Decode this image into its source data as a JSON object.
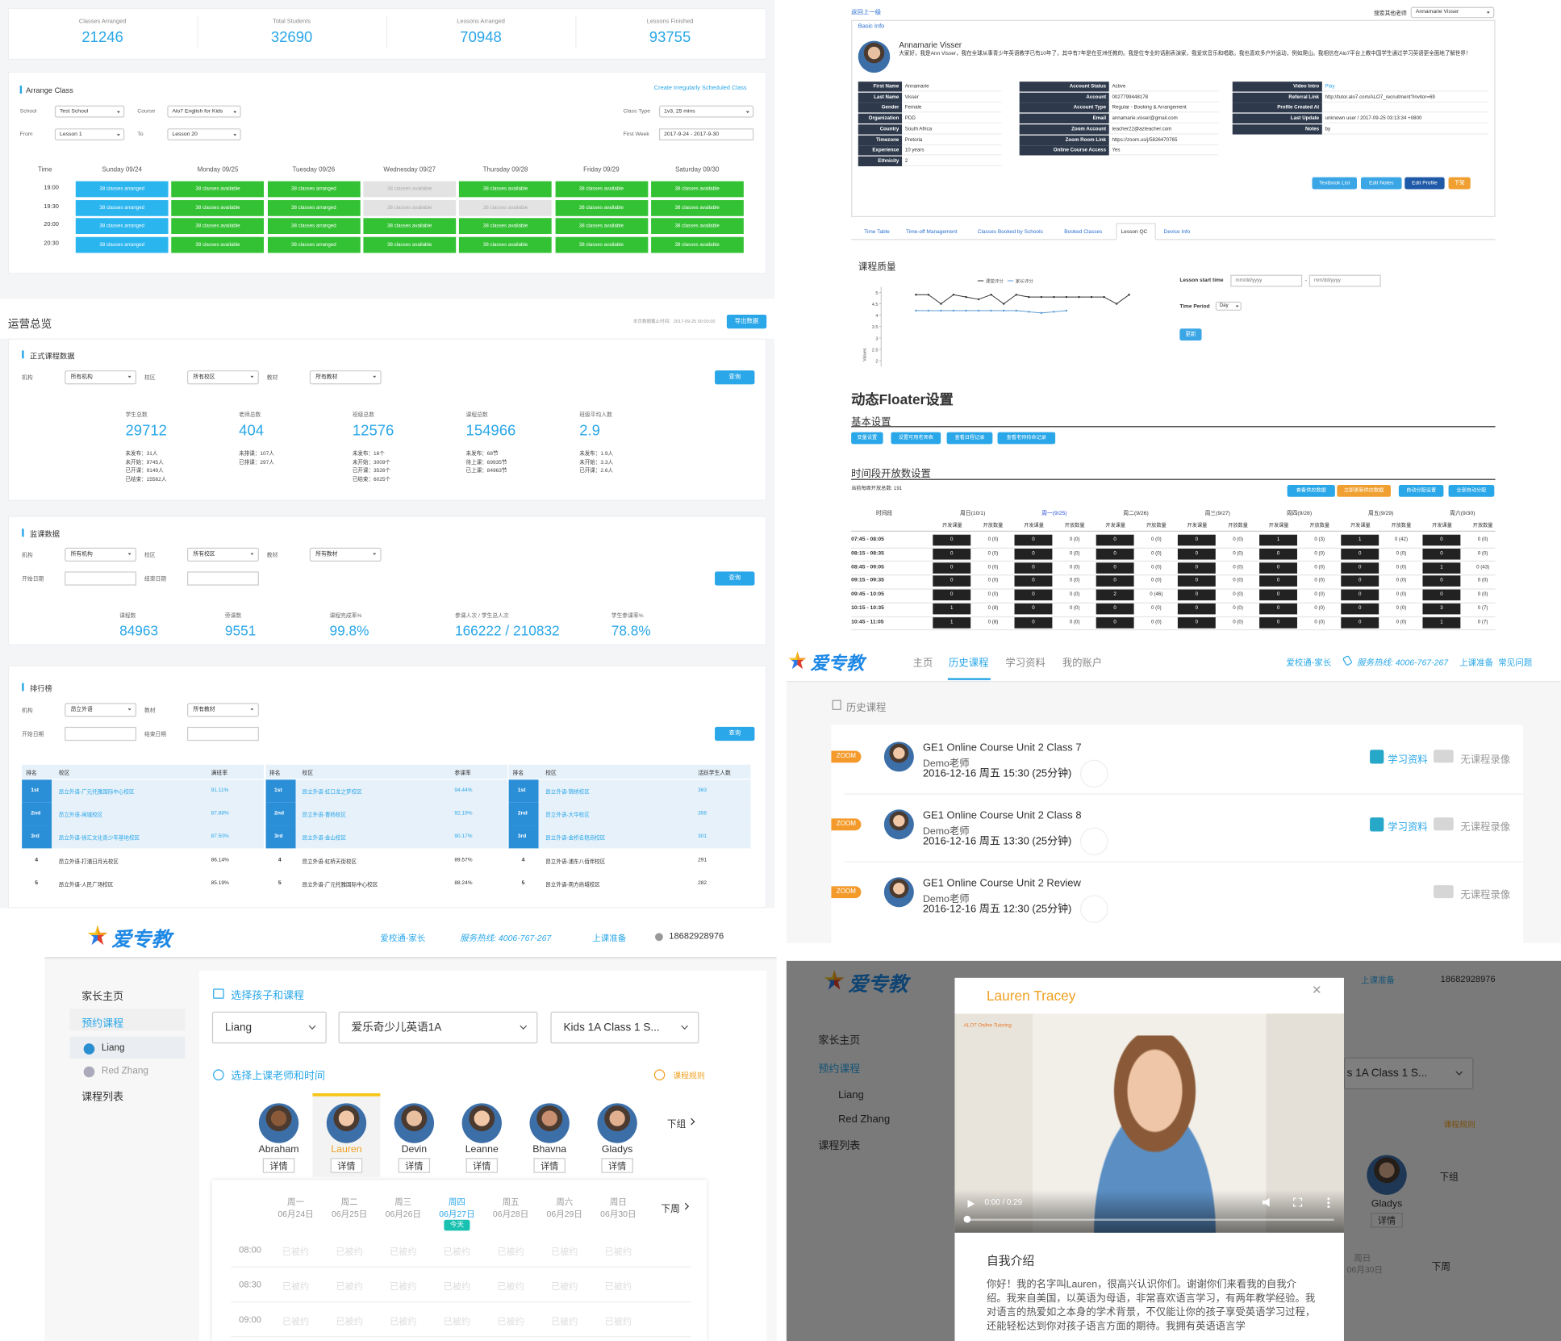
{
  "stats": [
    {
      "label": "Classes Arranged",
      "value": 21246
    },
    {
      "label": "Total Students",
      "value": 32690
    },
    {
      "label": "Lessons Arranged",
      "value": 70948
    },
    {
      "label": "Lessons Finished",
      "value": 93755
    }
  ],
  "arrange_class": {
    "title": "Arrange Class",
    "link": "Create Irregularly Scheduled Class",
    "filters": [
      {
        "label": "School",
        "value": "Test School"
      },
      {
        "label": "Course",
        "value": "Alo7 English for Kids"
      },
      {
        "label": "Class Type",
        "value": "1v3, 25 mins"
      },
      {
        "label": "From",
        "value": "Lesson 1"
      },
      {
        "label": "To",
        "value": "Lesson 20"
      },
      {
        "label": "First Week",
        "value": "2017-9-24 - 2017-9-30"
      }
    ],
    "columns": [
      "Time",
      "Sunday 09/24",
      "Monday 09/25",
      "Tuesday 09/26",
      "Wednesday 09/27",
      "Thursday 09/28",
      "Friday 09/29",
      "Saturday 09/30"
    ],
    "rows": [
      {
        "time": "19:00",
        "cells": [
          "38 classes arranged",
          "38 classes available",
          "38 classes arranged",
          "38 classes available",
          "38 classes available",
          "38 classes available",
          "38 classes available"
        ],
        "colors": [
          "#2bb5ef",
          "#33c233",
          "#33c233",
          "#e3e3e3",
          "#33c233",
          "#33c233",
          "#33c233"
        ]
      },
      {
        "time": "19:30",
        "cells": [
          "38 classes arranged",
          "38 classes available",
          "38 classes arranged",
          "38 classes available",
          "38 classes available",
          "38 classes available",
          "38 classes available"
        ],
        "colors": [
          "#2bb5ef",
          "#33c233",
          "#33c233",
          "#e3e3e3",
          "#e3e3e3",
          "#33c233",
          "#33c233"
        ]
      },
      {
        "time": "20:00",
        "cells": [
          "38 classes arranged",
          "38 classes available",
          "38 classes arranged",
          "38 classes available",
          "38 classes available",
          "38 classes available",
          "38 classes available"
        ],
        "colors": [
          "#2bb5ef",
          "#33c233",
          "#33c233",
          "#33c233",
          "#33c233",
          "#33c233",
          "#33c233"
        ]
      },
      {
        "time": "20:30",
        "cells": [
          "38 classes arranged",
          "38 classes available",
          "38 classes arranged",
          "38 classes available",
          "38 classes available",
          "38 classes available",
          "38 classes available"
        ],
        "colors": [
          "#2bb5ef",
          "#33c233",
          "#33c233",
          "#33c233",
          "#33c233",
          "#33c233",
          "#33c233"
        ]
      }
    ]
  },
  "overview": {
    "title": "运营总览",
    "note": "本页数据截止时间：2017-09-25 00:00:00",
    "export": "导出数据",
    "formal": {
      "title": "正式课程数据",
      "filters": [
        {
          "label": "机构",
          "value": "所有机构"
        },
        {
          "label": "校区",
          "value": "所有校区"
        },
        {
          "label": "教材",
          "value": "所有教材"
        }
      ],
      "button": "查询",
      "metrics": [
        {
          "label": "学生总数",
          "value": 29712,
          "details": [
            "未发布：31人",
            "未开始：9745人",
            "已开课：9149人",
            "已结束：15562人"
          ]
        },
        {
          "label": "老师总数",
          "value": 404,
          "details": [
            "未排课：107人",
            "已排课：297人"
          ]
        },
        {
          "label": "班级总数",
          "value": 12576,
          "details": [
            "未发布：16个",
            "未开始：3009个",
            "已开课：3526个",
            "已结束：6025个"
          ]
        },
        {
          "label": "课程总数",
          "value": 154966,
          "details": [
            "未发布：68节",
            "待上课：69935节",
            "已上课：84963节"
          ]
        },
        {
          "label": "班级平均人数",
          "value": 2.9,
          "details": [
            "未发布：1.9人",
            "未开始：3.3人",
            "已开课：2.6人"
          ]
        }
      ]
    },
    "monitor": {
      "title": "监课数据",
      "filters": [
        {
          "label": "机构",
          "value": "所有机构"
        },
        {
          "label": "校区",
          "value": "所有校区"
        },
        {
          "label": "教材",
          "value": "所有教材"
        }
      ],
      "dates": [
        "开始日期",
        "结束日期"
      ],
      "button": "查询",
      "metrics": [
        {
          "label": "课程数",
          "value": "84963"
        },
        {
          "label": "旁课数",
          "value": "9551"
        },
        {
          "label": "课程完成率%",
          "value": "99.8%"
        },
        {
          "label": "参课人次 / 学生总人次",
          "value": "166222 / 210832"
        },
        {
          "label": "学生参课率%",
          "value": "78.8%"
        }
      ]
    },
    "ranking": {
      "title": "排行榜",
      "filters": [
        {
          "label": "机构",
          "value": "昂立外语"
        },
        {
          "label": "教材",
          "value": "所有教材"
        }
      ],
      "dates": [
        "开始日期",
        "结束日期"
      ],
      "button": "查询",
      "tables": [
        {
          "headers": [
            "排名",
            "校区",
            "满班率"
          ],
          "rows": [
            [
              "1st",
              "昂立外语-广元托雅国际中心校区",
              "91.11%"
            ],
            [
              "2nd",
              "昂立外语-闸城校区",
              "87.88%"
            ],
            [
              "3rd",
              "昂立外语-徐汇文化青少年基地校区",
              "87.50%"
            ],
            [
              "4",
              "昂立外语-打浦日月光校区",
              "86.14%"
            ],
            [
              "5",
              "昂立外语-人民广场校区",
              "85.19%"
            ]
          ]
        },
        {
          "headers": [
            "排名",
            "校区",
            "参课率"
          ],
          "rows": [
            [
              "1st",
              "昂立外语-虹口龙之梦校区",
              "94.44%"
            ],
            [
              "2nd",
              "昂立外语-曹杨校区",
              "92.19%"
            ],
            [
              "3rd",
              "昂立外语-金山校区",
              "90.17%"
            ],
            [
              "4",
              "昂立外语-虹桥天街校区",
              "89.57%"
            ],
            [
              "5",
              "昂立外语-广元托雅国际中心校区",
              "88.24%"
            ]
          ]
        },
        {
          "headers": [
            "排名",
            "校区",
            "活跃学生人数"
          ],
          "rows": [
            [
              "1st",
              "昂立外语-锦绣校区",
              "363"
            ],
            [
              "2nd",
              "昂立外语-大华校区",
              "356"
            ],
            [
              "3rd",
              "昂立外语-金桥名稳商校区",
              "301"
            ],
            [
              "4",
              "昂立外语-浦东八佰伴校区",
              "291"
            ],
            [
              "5",
              "昂立外语-南方商城校区",
              "282"
            ]
          ]
        }
      ]
    }
  },
  "teacher": {
    "back": "返回上一级",
    "search_label": "搜索其他老师",
    "search_value": "Annamarie Visser",
    "section": "Basic Info",
    "name": "Annamarie Visser",
    "bio": "大家好，我是Ann Visser，我在全球从事青少年英语教学已有10年了，其中有7年是在亚洲任教的。我是位专业的话剧表演家，我爱欢音乐和唱歌。我也喜欢多户外运动，例如爬山。我相信在Alo7平台上教中国学生通过学习英语更全面地了解世界！",
    "fields": [
      [
        {
          "label": "First Name",
          "value": "Annamarie"
        },
        {
          "label": "Last Name",
          "value": "Visser"
        },
        {
          "label": "Gender",
          "value": "Female"
        },
        {
          "label": "Organization",
          "value": "PDD"
        },
        {
          "label": "Country",
          "value": "South Africa"
        },
        {
          "label": "Timezone",
          "value": "Pretoria"
        },
        {
          "label": "Experience",
          "value": "10 years"
        },
        {
          "label": "Ethnicity",
          "value": "2"
        }
      ],
      [
        {
          "label": "Account Status",
          "value": "Active"
        },
        {
          "label": "Account",
          "value": "0027799448178"
        },
        {
          "label": "Account Type",
          "value": "Regular - Booking & Arrangement"
        },
        {
          "label": "Email",
          "value": "annamarie.visser@gmail.com"
        },
        {
          "label": "Zoom Account",
          "value": "teacher22@azteacher.com"
        },
        {
          "label": "Zoom Room Link",
          "value": "https://zoom.us/j/5826470765"
        },
        {
          "label": "Online Course Access",
          "value": "Yes"
        }
      ],
      [
        {
          "label": "Video Intro",
          "value": "Play"
        },
        {
          "label": "Referral Link",
          "value": "http://tutor.alo7.com/ALO7_recruitment?invitor=69"
        },
        {
          "label": "Profile Created At"
        },
        {
          "label": "Last Update",
          "value": "unknown user / 2017-09-25 03:13:34 +0800"
        },
        {
          "label": "Notes",
          "value": "by"
        }
      ]
    ],
    "buttons": [
      "Textbook List",
      "Edit Notes",
      "Edit Profile",
      "下架"
    ],
    "tabs": [
      "Time Table",
      "Time-off Management",
      "Classes Booked by Schools",
      "Booked Classes",
      "Lesson QC",
      "Device Info"
    ],
    "quality": {
      "type": "line",
      "title": "课程质量",
      "y_label": "Values",
      "ylim": [
        1.75,
        5.25
      ],
      "yticks": [
        5,
        4.5,
        4,
        3.5,
        3,
        2.5,
        2
      ],
      "series": [
        {
          "name": "课堂评分",
          "color": "#333333",
          "values": [
            4.9,
            4.9,
            4.5,
            4.9,
            4.8,
            4.7,
            4.9,
            4.5,
            4.9,
            4.8,
            4.8,
            4.8,
            4.8,
            4.8,
            4.8,
            4.8,
            4.5,
            4.9
          ]
        },
        {
          "name": "家长评分",
          "color": "#5b9bd5",
          "values": [
            4.2,
            4.2,
            4.2,
            4.2,
            4.2,
            4.2,
            4.2,
            4.2,
            4.2,
            4.15,
            4.1,
            4.15,
            4.2
          ]
        }
      ]
    },
    "filter": {
      "start_label": "Lesson start time",
      "placeholder": "mm/dd/yyyy",
      "dash": "-",
      "period_label": "Time Period",
      "period": "Day",
      "button": "更新"
    }
  },
  "floater": {
    "title": "动态Floater设置",
    "basic": "基本设置",
    "basic_buttons": [
      "变量设置",
      "设置可用老师表",
      "查看日程记录",
      "查看老师待命记录"
    ],
    "slots_title": "时间段开放数设置",
    "total": "当前每周开放总数: 191",
    "slot_buttons": [
      "查看供应数据",
      "立即更新供应数据",
      "自动分配设置",
      "全部自动分配"
    ],
    "time_header": "时间段",
    "days": [
      "周日(10/1)",
      "周一(9/25)",
      "周二(9/26)",
      "周三(9/27)",
      "周四(9/28)",
      "周五(9/29)",
      "周六(9/30)"
    ],
    "sub_headers": [
      "开发课量",
      "开放数量"
    ],
    "rows": [
      {
        "time": "07:45 - 08:05",
        "cells": [
          [
            0,
            "0 (0)"
          ],
          [
            0,
            "0 (0)"
          ],
          [
            0,
            "0 (0)"
          ],
          [
            0,
            "0 (0)"
          ],
          [
            1,
            "0 (3)"
          ],
          [
            1,
            "0 (42)"
          ],
          [
            0,
            "0 (0)"
          ]
        ]
      },
      {
        "time": "08:15 - 08:35",
        "cells": [
          [
            0,
            "0 (0)"
          ],
          [
            0,
            "0 (0)"
          ],
          [
            0,
            "0 (0)"
          ],
          [
            0,
            "0 (0)"
          ],
          [
            0,
            "0 (0)"
          ],
          [
            0,
            "0 (0)"
          ],
          [
            0,
            "0 (0)"
          ]
        ]
      },
      {
        "time": "08:45 - 09:05",
        "cells": [
          [
            0,
            "0 (0)"
          ],
          [
            0,
            "0 (0)"
          ],
          [
            0,
            "0 (0)"
          ],
          [
            0,
            "0 (0)"
          ],
          [
            0,
            "0 (0)"
          ],
          [
            0,
            "0 (0)"
          ],
          [
            1,
            "0 (43)"
          ]
        ]
      },
      {
        "time": "09:15 - 09:35",
        "cells": [
          [
            0,
            "0 (0)"
          ],
          [
            0,
            "0 (0)"
          ],
          [
            0,
            "0 (0)"
          ],
          [
            0,
            "0 (0)"
          ],
          [
            0,
            "0 (0)"
          ],
          [
            0,
            "0 (0)"
          ],
          [
            0,
            "0 (0)"
          ]
        ]
      },
      {
        "time": "09:45 - 10:05",
        "cells": [
          [
            0,
            "0 (0)"
          ],
          [
            0,
            "0 (0)"
          ],
          [
            2,
            "0 (46)"
          ],
          [
            0,
            "0 (0)"
          ],
          [
            0,
            "0 (0)"
          ],
          [
            0,
            "0 (0)"
          ],
          [
            0,
            "0 (0)"
          ]
        ]
      },
      {
        "time": "10:15 - 10:35",
        "cells": [
          [
            1,
            "0 (8)"
          ],
          [
            0,
            "0 (0)"
          ],
          [
            0,
            "0 (0)"
          ],
          [
            0,
            "0 (0)"
          ],
          [
            0,
            "0 (0)"
          ],
          [
            0,
            "0 (0)"
          ],
          [
            3,
            "0 (7)"
          ]
        ]
      },
      {
        "time": "10:45 - 11:05",
        "cells": [
          [
            1,
            "0 (8)"
          ],
          [
            0,
            "0 (0)"
          ],
          [
            0,
            "0 (0)"
          ],
          [
            0,
            "0 (0)"
          ],
          [
            0,
            "0 (0)"
          ],
          [
            0,
            "0 (0)"
          ],
          [
            1,
            "0 (7)"
          ]
        ]
      }
    ]
  },
  "history": {
    "logo": "爱专教",
    "nav": [
      "主页",
      "历史课程",
      "学习资料",
      "我的账户"
    ],
    "links": [
      "爱校通-家长",
      "服务热线: 4006-767-267",
      "上课准备",
      "常见问题"
    ],
    "section": "历史课程",
    "items": [
      {
        "tag": "ZOOM",
        "title": "GE1 Online Course Unit 2 Class 7",
        "teacher": "Demo老师",
        "time": "2016-12-16 周五 15:30 (25分钟)",
        "material": "学习资料",
        "video": "无课程录像"
      },
      {
        "tag": "ZOOM",
        "title": "GE1 Online Course Unit 2 Class 8",
        "teacher": "Demo老师",
        "time": "2016-12-16 周五 13:30 (25分钟)",
        "material": "学习资料",
        "video": "无课程录像"
      },
      {
        "tag": "ZOOM",
        "title": "GE1 Online Course Unit 2 Review",
        "teacher": "Demo老师",
        "time": "2016-12-16 周五 12:30 (25分钟)",
        "video": "无课程录像"
      }
    ]
  },
  "booking": {
    "logo": "爱专教",
    "links": [
      "爱校通-家长",
      "服务热线: 4006-767-267",
      "上课准备"
    ],
    "user": "18682928976",
    "sidebar": [
      "家长主页",
      "预约课程",
      "Liang",
      "Red Zhang",
      "课程列表"
    ],
    "step1": "选择孩子和课程",
    "selects": [
      "Liang",
      "爱乐奇少儿英语1A",
      "Kids 1A Class 1 S..."
    ],
    "step2": "选择上课老师和时间",
    "rules": "课程规则",
    "teachers": [
      "Abraham",
      "Lauren",
      "Devin",
      "Leanne",
      "Bhavna",
      "Gladys"
    ],
    "detail": "详情",
    "next_group": "下组",
    "weekdays": [
      "周一",
      "周二",
      "周三",
      "周四",
      "周五",
      "周六",
      "周日"
    ],
    "dates": [
      "06月24日",
      "06月25日",
      "06月26日",
      "06月27日",
      "06月28日",
      "06月29日",
      "06月30日"
    ],
    "today": "今天",
    "next_week": "下周",
    "times": [
      "08:00",
      "08:30",
      "09:00"
    ],
    "booked": "已被约"
  },
  "modal": {
    "title": "Lauren Tracey",
    "video_brand": "ALO7 Online Tutoring",
    "video_time": "0:00 / 0:29",
    "intro_title": "自我介绍",
    "intro": "你好！我的名字叫Lauren，很高兴认识你们。谢谢你们来看我的自我介绍。我来自美国，以英语为母语，非常喜欢语言学习，有两年教学经验。我对语言的热爱如之本身的学术背景，不仅能让你的孩子享受英语学习过程，还能轻松达到你对孩子语言方面的期待。我拥有英语语言学",
    "background": {
      "logo": "爱专教",
      "prep": "上课准备",
      "user": "18682928976",
      "sidebar": [
        "家长主页",
        "预约课程",
        "Liang",
        "Red Zhang",
        "课程列表"
      ],
      "select": "s 1A Class 1 S...",
      "rules": "课程规则",
      "teacher": "Gladys",
      "detail": "详情",
      "next_group": "下组",
      "weekday": "周日",
      "date": "06月30日",
      "next_week": "下周"
    }
  }
}
